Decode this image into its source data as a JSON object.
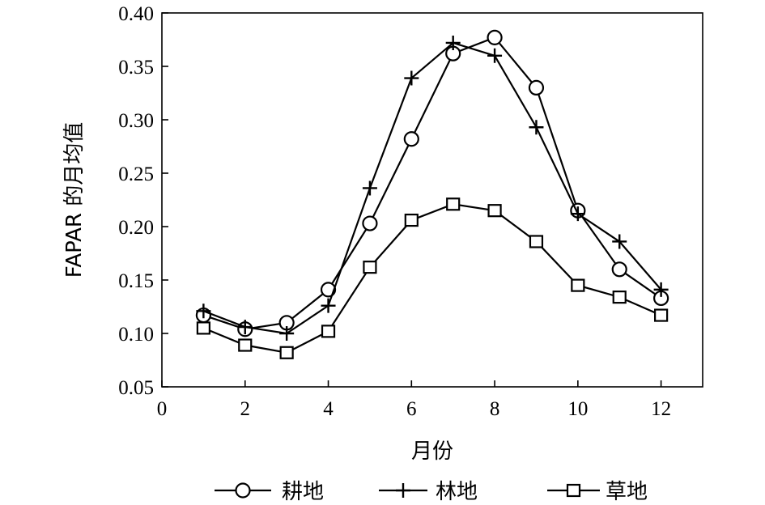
{
  "chart_data": {
    "type": "line",
    "xlabel": "月份",
    "ylabel": "FAPAR 的月均值",
    "xlim": [
      0,
      13
    ],
    "ylim": [
      0.05,
      0.4
    ],
    "xticks": [
      0,
      2,
      4,
      6,
      8,
      10,
      12
    ],
    "yticks": [
      0.05,
      0.1,
      0.15,
      0.2,
      0.25,
      0.3,
      0.35,
      0.4
    ],
    "ytick_labels": [
      "0.05",
      "0.10",
      "0.15",
      "0.20",
      "0.25",
      "0.30",
      "0.35",
      "0.40"
    ],
    "xtick_labels": [
      "0",
      "2",
      "4",
      "6",
      "8",
      "10",
      "12"
    ],
    "grid": false,
    "legend_position": "bottom",
    "x": [
      1,
      2,
      3,
      4,
      5,
      6,
      7,
      8,
      9,
      10,
      11,
      12
    ],
    "series": [
      {
        "name": "耕地",
        "marker": "circle",
        "values": [
          0.117,
          0.104,
          0.11,
          0.141,
          0.203,
          0.282,
          0.362,
          0.377,
          0.33,
          0.215,
          0.16,
          0.133
        ]
      },
      {
        "name": "林地",
        "marker": "plus",
        "values": [
          0.121,
          0.106,
          0.1,
          0.126,
          0.236,
          0.339,
          0.372,
          0.36,
          0.293,
          0.212,
          0.186,
          0.141
        ]
      },
      {
        "name": "草地",
        "marker": "square",
        "values": [
          0.105,
          0.089,
          0.082,
          0.102,
          0.162,
          0.206,
          0.221,
          0.215,
          0.186,
          0.145,
          0.134,
          0.117
        ]
      }
    ]
  }
}
